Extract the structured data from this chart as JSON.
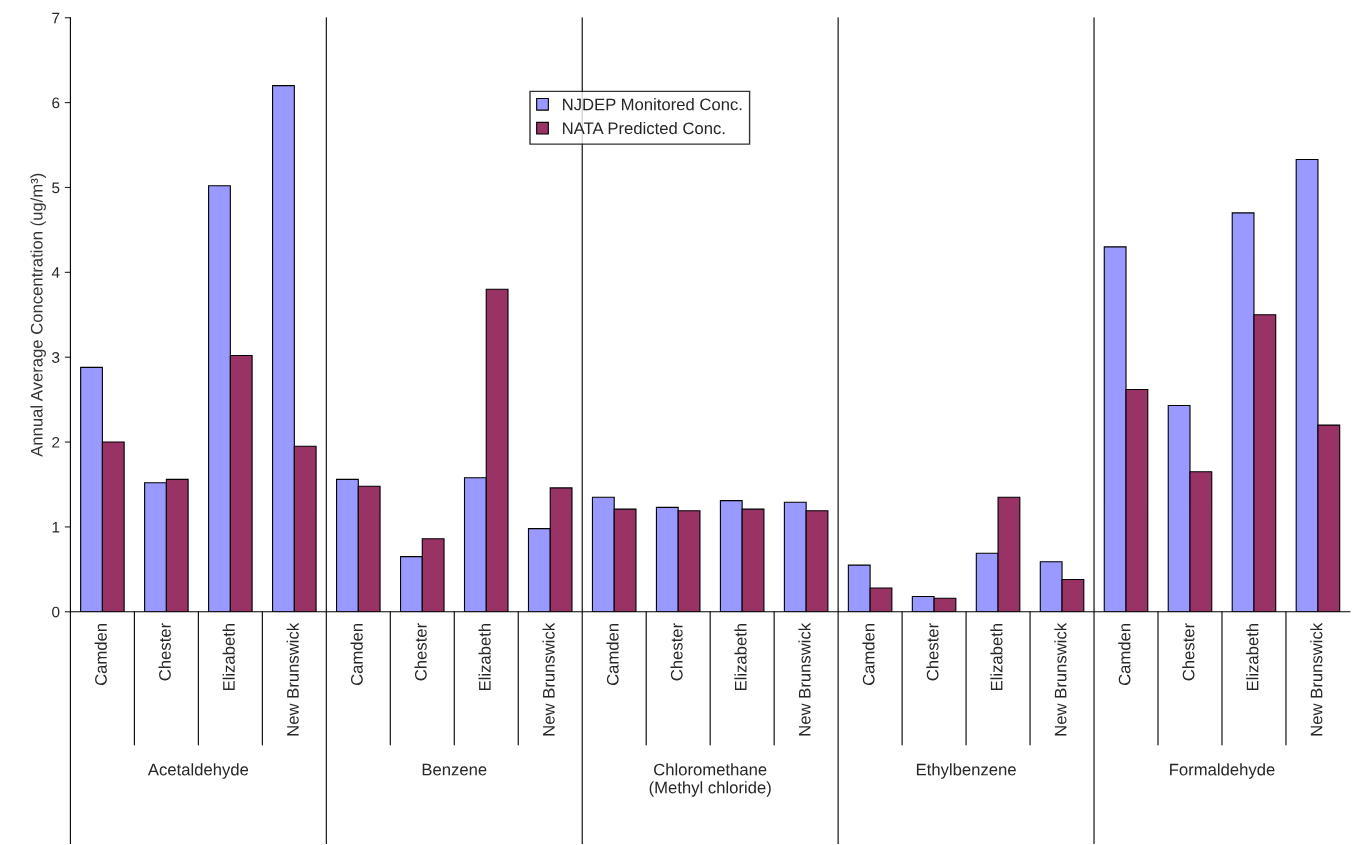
{
  "chart_data": {
    "type": "bar",
    "ylabel": "Annual Average Concentration (ug/m³)",
    "categories": [
      "Camden",
      "Chester",
      "Elizabeth",
      "New Brunswick",
      "Camden",
      "Chester",
      "Elizabeth",
      "New Brunswick",
      "Camden",
      "Chester",
      "Elizabeth",
      "New Brunswick",
      "Camden",
      "Chester",
      "Elizabeth",
      "New Brunswick",
      "Camden",
      "Chester",
      "Elizabeth",
      "New Brunswick"
    ],
    "annotations": [
      "Acetaldehyde",
      "Benzene",
      "Chloromethane\n(Methyl chloride)",
      "Ethylbenzene",
      "Formaldehyde"
    ],
    "series": [
      {
        "name": "NJDEP Monitored Conc.",
        "color": "#9999ff",
        "values": [
          2.88,
          1.52,
          5.02,
          6.2,
          1.56,
          0.65,
          1.58,
          0.98,
          1.35,
          1.23,
          1.31,
          1.29,
          0.55,
          0.18,
          0.69,
          0.59,
          4.3,
          2.43,
          4.7,
          5.33
        ]
      },
      {
        "name": "NATA Predicted Conc.",
        "color": "#993366",
        "values": [
          2.0,
          1.56,
          3.02,
          1.95,
          1.48,
          0.86,
          3.8,
          1.46,
          1.21,
          1.19,
          1.21,
          1.19,
          0.28,
          0.16,
          1.35,
          0.38,
          2.62,
          1.65,
          3.5,
          2.2
        ]
      }
    ],
    "ylim": [
      0,
      7
    ],
    "yticks": [
      0,
      1,
      2,
      3,
      4,
      5,
      6,
      7
    ],
    "grid": false,
    "legend": "top center"
  }
}
